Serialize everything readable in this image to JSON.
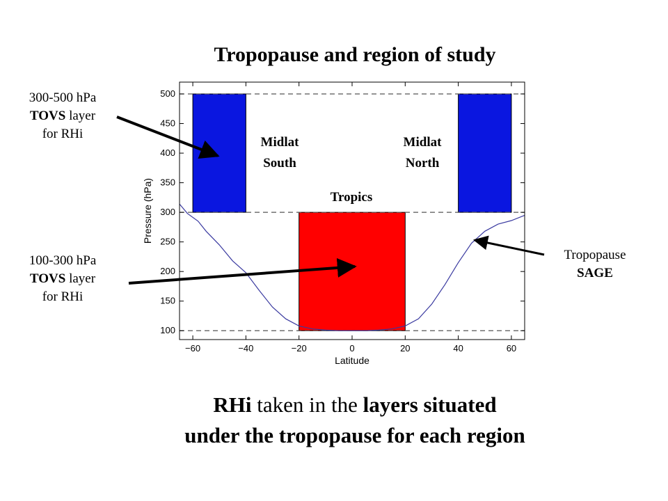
{
  "chart_data": {
    "type": "line",
    "title": "Tropopause and region of study",
    "xlabel": "Latitude",
    "ylabel": "Pressure (hPa)",
    "xlim": [
      -65,
      65
    ],
    "ylim": [
      85,
      520
    ],
    "y_reversed": true,
    "xticks": [
      -60,
      -40,
      -20,
      0,
      20,
      40,
      60
    ],
    "yticks": [
      100,
      150,
      200,
      250,
      300,
      350,
      400,
      450,
      500
    ],
    "grid": false,
    "reference_lines": [
      500,
      300,
      100
    ],
    "regions": [
      {
        "name": "Midlat South",
        "lat": [
          -60,
          -40
        ],
        "pressure": [
          300,
          500
        ],
        "color": "#0a16e0"
      },
      {
        "name": "Tropics",
        "lat": [
          -20,
          20
        ],
        "pressure": [
          100,
          300
        ],
        "color": "#ff0000"
      },
      {
        "name": "Midlat North",
        "lat": [
          40,
          60
        ],
        "pressure": [
          300,
          500
        ],
        "color": "#0a16e0"
      }
    ],
    "series": [
      {
        "name": "Tropopause SAGE",
        "color": "#3a3aa0",
        "x": [
          -65,
          -62,
          -58,
          -55,
          -50,
          -45,
          -40,
          -35,
          -30,
          -25,
          -20,
          -15,
          -10,
          -5,
          0,
          5,
          10,
          15,
          20,
          25,
          30,
          35,
          40,
          45,
          50,
          55,
          60,
          65
        ],
        "y": [
          314,
          298,
          285,
          268,
          245,
          218,
          198,
          168,
          140,
          120,
          108,
          103,
          101,
          100,
          100,
          100,
          101,
          103,
          108,
          120,
          145,
          178,
          215,
          248,
          268,
          280,
          286,
          295
        ]
      }
    ]
  },
  "labels": {
    "title": "Tropopause and region of study",
    "midlat_south": [
      "Midlat",
      "South"
    ],
    "midlat_north": [
      "Midlat",
      "North"
    ],
    "tropics": "Tropics"
  },
  "callouts": {
    "upper": {
      "line1": "300-500 hPa",
      "line2_bold": "TOVS",
      "line2_rest": " layer",
      "line3": "for RHi"
    },
    "lower": {
      "line1": "100-300 hPa",
      "line2_bold": "TOVS",
      "line2_rest": " layer",
      "line3": "for RHi"
    },
    "tropopause": {
      "line1": "Tropopause",
      "line2": "SAGE"
    }
  },
  "caption": {
    "part1_bold": "RHi",
    "part2": " taken in the ",
    "part3_bold": "layers situated",
    "line2_bold": "under the tropopause for each region"
  }
}
